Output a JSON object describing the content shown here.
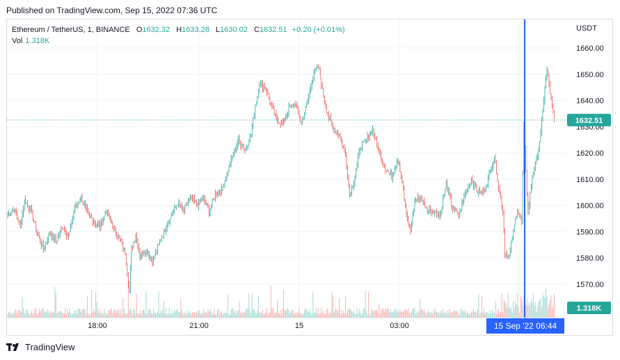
{
  "published": "Published on TradingView.com, Sep 15, 2022 07:36 UTC",
  "legend": {
    "symbol": "Ethereum / TetherUS, 1, BINANCE",
    "o_label": "O",
    "o": "1632.32",
    "h_label": "H",
    "h": "1633.28",
    "l_label": "L",
    "l": "1630.02",
    "c_label": "C",
    "c": "1632.51",
    "change": "+0.20 (+0.01%)",
    "vol_label": "Vol",
    "vol": "1.318K"
  },
  "currency": "USDT",
  "footer": {
    "brand": "TradingView"
  },
  "colors": {
    "up": "#26a69a",
    "down": "#ef5350",
    "crosshair": "#2962ff",
    "grid": "#f0f3fa"
  },
  "chart_data": {
    "type": "candlestick",
    "instrument": "Ethereum / TetherUS",
    "interval": "1",
    "exchange": "BINANCE",
    "ylim": [
      1560,
      1665
    ],
    "y_ticks": [
      "1660.00",
      "1650.00",
      "1640.00",
      "1630.00",
      "1620.00",
      "1610.00",
      "1600.00",
      "1590.00",
      "1580.00",
      "1570.00"
    ],
    "x_ticks": [
      "18:00",
      "21:00",
      "15",
      "03:00"
    ],
    "last_price": "1632.51",
    "last_volume": "1.318K",
    "crosshair_date": "15 Sep '22",
    "crosshair_time": "06:44",
    "price_path": [
      [
        0,
        1596
      ],
      [
        6,
        1599
      ],
      [
        12,
        1592
      ],
      [
        16,
        1602
      ],
      [
        22,
        1598
      ],
      [
        28,
        1590
      ],
      [
        34,
        1583
      ],
      [
        40,
        1590
      ],
      [
        46,
        1586
      ],
      [
        52,
        1592
      ],
      [
        58,
        1588
      ],
      [
        64,
        1599
      ],
      [
        70,
        1603
      ],
      [
        76,
        1597
      ],
      [
        82,
        1594
      ],
      [
        88,
        1592
      ],
      [
        94,
        1598
      ],
      [
        100,
        1592
      ],
      [
        106,
        1588
      ],
      [
        112,
        1582
      ],
      [
        116,
        1567
      ],
      [
        118,
        1583
      ],
      [
        122,
        1589
      ],
      [
        126,
        1581
      ],
      [
        132,
        1583
      ],
      [
        138,
        1579
      ],
      [
        144,
        1585
      ],
      [
        150,
        1591
      ],
      [
        156,
        1596
      ],
      [
        162,
        1601
      ],
      [
        168,
        1598
      ],
      [
        174,
        1603
      ],
      [
        180,
        1600
      ],
      [
        186,
        1603
      ],
      [
        192,
        1598
      ],
      [
        198,
        1604
      ],
      [
        204,
        1606
      ],
      [
        208,
        1611
      ],
      [
        214,
        1618
      ],
      [
        220,
        1625
      ],
      [
        226,
        1621
      ],
      [
        232,
        1627
      ],
      [
        236,
        1638
      ],
      [
        240,
        1646
      ],
      [
        246,
        1645
      ],
      [
        252,
        1637
      ],
      [
        256,
        1633
      ],
      [
        262,
        1631
      ],
      [
        268,
        1637
      ],
      [
        274,
        1639
      ],
      [
        280,
        1631
      ],
      [
        286,
        1640
      ],
      [
        292,
        1651
      ],
      [
        296,
        1653
      ],
      [
        300,
        1644
      ],
      [
        304,
        1636
      ],
      [
        310,
        1629
      ],
      [
        316,
        1627
      ],
      [
        322,
        1619
      ],
      [
        326,
        1604
      ],
      [
        330,
        1609
      ],
      [
        336,
        1622
      ],
      [
        342,
        1625
      ],
      [
        348,
        1629
      ],
      [
        354,
        1620
      ],
      [
        360,
        1614
      ],
      [
        366,
        1611
      ],
      [
        372,
        1618
      ],
      [
        376,
        1609
      ],
      [
        380,
        1596
      ],
      [
        384,
        1590
      ],
      [
        388,
        1602
      ],
      [
        394,
        1603
      ],
      [
        400,
        1598
      ],
      [
        406,
        1598
      ],
      [
        412,
        1596
      ],
      [
        418,
        1608
      ],
      [
        424,
        1599
      ],
      [
        430,
        1596
      ],
      [
        436,
        1605
      ],
      [
        442,
        1610
      ],
      [
        448,
        1605
      ],
      [
        454,
        1605
      ],
      [
        460,
        1613
      ],
      [
        464,
        1619
      ],
      [
        468,
        1607
      ],
      [
        472,
        1598
      ],
      [
        474,
        1582
      ],
      [
        478,
        1580
      ],
      [
        482,
        1590
      ],
      [
        486,
        1599
      ],
      [
        490,
        1593
      ],
      [
        492,
        1630
      ],
      [
        496,
        1597
      ],
      [
        500,
        1611
      ],
      [
        504,
        1617
      ],
      [
        508,
        1627
      ],
      [
        512,
        1645
      ],
      [
        514,
        1652
      ],
      [
        518,
        1640
      ],
      [
        521,
        1632.51
      ]
    ]
  }
}
